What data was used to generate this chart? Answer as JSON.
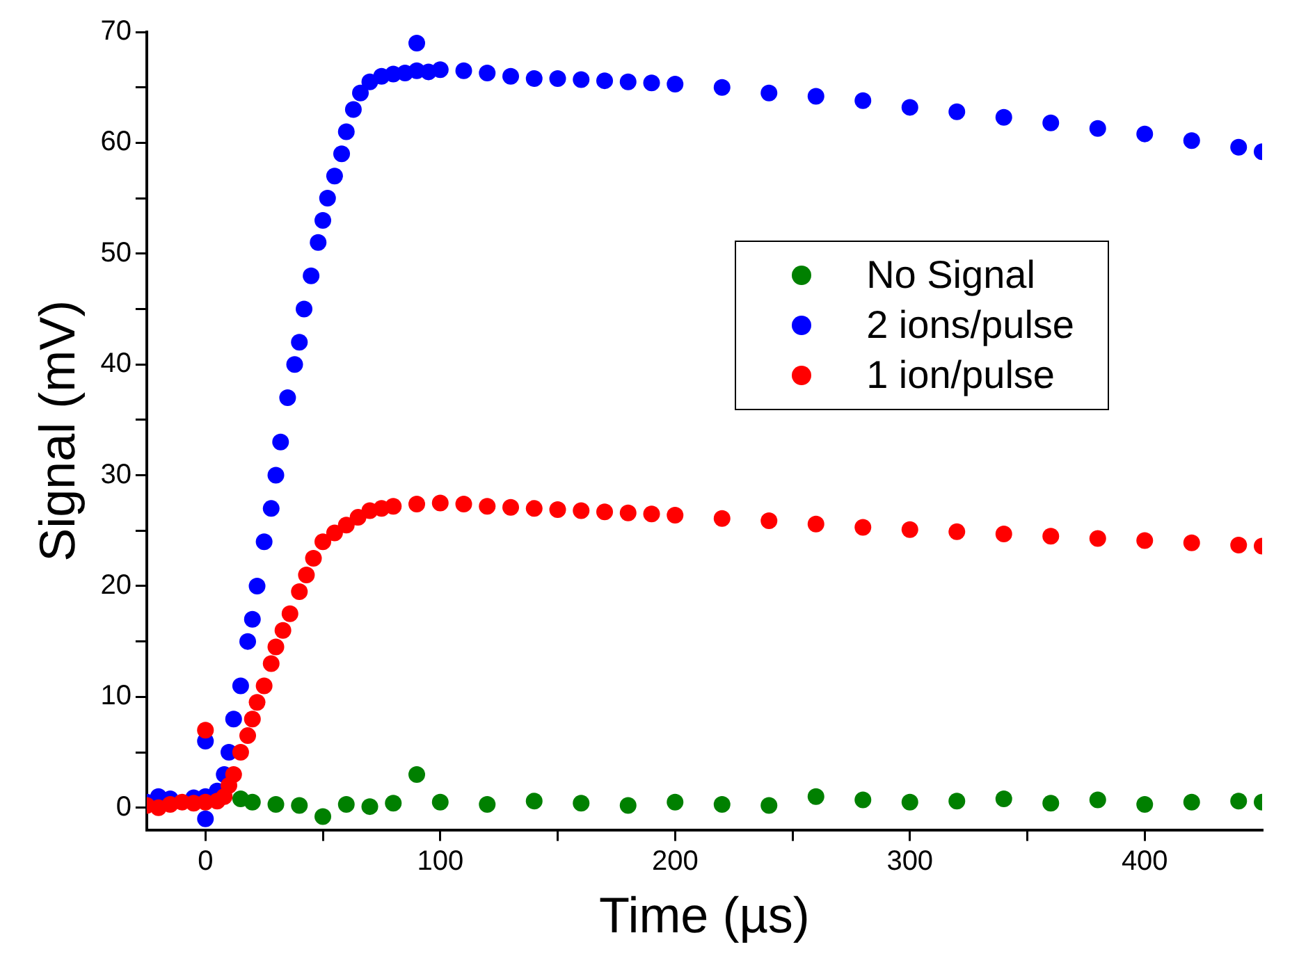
{
  "chart_data": {
    "type": "scatter",
    "xlabel": "Time (µs)",
    "ylabel": "Signal (mV)",
    "xlim": [
      -25,
      450
    ],
    "ylim": [
      -2,
      70
    ],
    "xticks": [
      0,
      {
        "value": 50,
        "label": null
      },
      100,
      {
        "value": 150,
        "label": null
      },
      200,
      {
        "value": 250,
        "label": null
      },
      300,
      {
        "value": 350,
        "label": null
      },
      400
    ],
    "yticks": [
      0,
      {
        "value": 5,
        "label": null
      },
      10,
      {
        "value": 15,
        "label": null
      },
      20,
      {
        "value": 25,
        "label": null
      },
      30,
      {
        "value": 35,
        "label": null
      },
      40,
      {
        "value": 45,
        "label": null
      },
      50,
      {
        "value": 55,
        "label": null
      },
      60,
      {
        "value": 65,
        "label": null
      },
      70
    ],
    "grid": false,
    "legend": "right",
    "marker": "circle",
    "series": [
      {
        "name": "No Signal",
        "color": "#008000",
        "x": [
          15,
          20,
          30,
          40,
          50,
          60,
          70,
          80,
          90,
          100,
          120,
          140,
          160,
          180,
          200,
          220,
          240,
          260,
          280,
          300,
          320,
          340,
          360,
          380,
          400,
          420,
          440,
          450
        ],
        "values": [
          0.8,
          0.5,
          0.3,
          0.2,
          -0.8,
          0.3,
          0.1,
          0.4,
          3,
          0.5,
          0.3,
          0.6,
          0.4,
          0.2,
          0.5,
          0.3,
          0.2,
          1.0,
          0.7,
          0.5,
          0.6,
          0.8,
          0.4,
          0.7,
          0.3,
          0.5,
          0.6,
          0.5
        ]
      },
      {
        "name": "2 ions/pulse",
        "color": "#0000ff",
        "x": [
          -25,
          -20,
          -15,
          -5,
          0,
          0,
          0,
          5,
          8,
          10,
          12,
          15,
          18,
          20,
          22,
          25,
          28,
          30,
          32,
          35,
          38,
          40,
          42,
          45,
          48,
          50,
          52,
          55,
          58,
          60,
          63,
          66,
          70,
          75,
          80,
          85,
          90,
          90,
          95,
          100,
          110,
          120,
          130,
          140,
          150,
          160,
          170,
          180,
          190,
          200,
          220,
          240,
          260,
          280,
          300,
          320,
          340,
          360,
          380,
          400,
          420,
          440,
          450
        ],
        "values": [
          0.5,
          1,
          0.8,
          0.9,
          6,
          -1,
          1,
          1.5,
          3,
          5,
          8,
          11,
          15,
          17,
          20,
          24,
          27,
          30,
          33,
          37,
          40,
          42,
          45,
          48,
          51,
          53,
          55,
          57,
          59,
          61,
          63,
          64.5,
          65.5,
          66,
          66.2,
          66.3,
          66.5,
          69,
          66.4,
          66.6,
          66.5,
          66.3,
          66,
          65.8,
          65.8,
          65.7,
          65.6,
          65.5,
          65.4,
          65.3,
          65,
          64.5,
          64.2,
          63.8,
          63.2,
          62.8,
          62.3,
          61.8,
          61.3,
          60.8,
          60.2,
          59.6,
          59.2
        ]
      },
      {
        "name": "1 ion/pulse",
        "color": "#ff0000",
        "x": [
          -25,
          -20,
          -15,
          -10,
          -5,
          0,
          0,
          5,
          8,
          10,
          12,
          15,
          18,
          20,
          22,
          25,
          28,
          30,
          33,
          36,
          40,
          43,
          46,
          50,
          55,
          60,
          65,
          70,
          75,
          80,
          90,
          100,
          110,
          120,
          130,
          140,
          150,
          160,
          170,
          180,
          190,
          200,
          220,
          240,
          260,
          280,
          300,
          320,
          340,
          360,
          380,
          400,
          420,
          440,
          450
        ],
        "values": [
          0.2,
          0,
          0.3,
          0.5,
          0.4,
          7,
          0.5,
          0.6,
          1,
          2,
          3,
          5,
          6.5,
          8,
          9.5,
          11,
          13,
          14.5,
          16,
          17.5,
          19.5,
          21,
          22.5,
          24,
          24.8,
          25.5,
          26.2,
          26.8,
          27,
          27.2,
          27.4,
          27.5,
          27.4,
          27.2,
          27.1,
          27,
          26.9,
          26.8,
          26.7,
          26.6,
          26.5,
          26.4,
          26.1,
          25.9,
          25.6,
          25.3,
          25.1,
          24.9,
          24.7,
          24.5,
          24.3,
          24.1,
          23.9,
          23.7,
          23.6
        ]
      }
    ]
  }
}
